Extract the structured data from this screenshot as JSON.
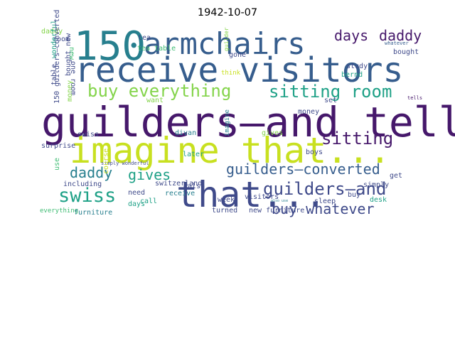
{
  "figure": {
    "title": "1942-10-07"
  },
  "palette": {
    "dark_purple": "#46186b",
    "indigo": "#3f4a8a",
    "blue": "#365d8d",
    "teal": "#277f8e",
    "sea_green": "#1fa187",
    "green": "#3fbc73",
    "light_green": "#84d44b",
    "lime": "#c8e020"
  },
  "words": [
    {
      "text": "150",
      "color": "teal"
    },
    {
      "text": "armchairs",
      "color": "blue"
    },
    {
      "text": "receive visitors",
      "color": "blue"
    },
    {
      "text": "guilders—and tells",
      "color": "dark_purple"
    },
    {
      "text": "imagine that...",
      "color": "lime"
    },
    {
      "text": "that...",
      "color": "indigo"
    },
    {
      "text": "buy everything",
      "color": "light_green"
    },
    {
      "text": "sitting room",
      "color": "sea_green"
    },
    {
      "text": "days",
      "color": "dark_purple"
    },
    {
      "text": "daddy",
      "color": "dark_purple"
    },
    {
      "text": "sitting",
      "color": "dark_purple"
    },
    {
      "text": "guilders—converted",
      "color": "blue"
    },
    {
      "text": "guilders—and",
      "color": "indigo"
    },
    {
      "text": "daddy",
      "color": "teal"
    },
    {
      "text": "gives",
      "color": "sea_green"
    },
    {
      "text": "swiss",
      "color": "sea_green"
    },
    {
      "text": "buy whatever",
      "color": "indigo"
    },
    {
      "text": "daddy",
      "color": "light_green"
    },
    {
      "text": "room",
      "color": "indigo"
    },
    {
      "text": "tea",
      "color": "indigo"
    },
    {
      "text": "tea table",
      "color": "green"
    },
    {
      "text": "gone",
      "color": "indigo"
    },
    {
      "text": "study",
      "color": "indigo"
    },
    {
      "text": "bernd",
      "color": "sea_green"
    },
    {
      "text": "bought",
      "color": "indigo"
    },
    {
      "text": "whatever",
      "color": "blue"
    },
    {
      "text": "tells",
      "color": "dark_purple"
    },
    {
      "text": "think",
      "color": "lime"
    },
    {
      "text": "want",
      "color": "light_green"
    },
    {
      "text": "set",
      "color": "indigo"
    },
    {
      "text": "money",
      "color": "indigo"
    },
    {
      "text": "swiss",
      "color": "indigo"
    },
    {
      "text": "divan",
      "color": "teal"
    },
    {
      "text": "gives",
      "color": "light_green"
    },
    {
      "text": "surprise",
      "color": "indigo"
    },
    {
      "text": "later",
      "color": "sea_green"
    },
    {
      "text": "boys",
      "color": "indigo"
    },
    {
      "text": "simply wonderful",
      "color": "indigo"
    },
    {
      "text": "including",
      "color": "indigo"
    },
    {
      "text": "get",
      "color": "indigo"
    },
    {
      "text": "simply",
      "color": "indigo"
    },
    {
      "text": "buy",
      "color": "indigo"
    },
    {
      "text": "sleep",
      "color": "indigo"
    },
    {
      "text": "switzerland",
      "color": "indigo"
    },
    {
      "text": "receive",
      "color": "teal"
    },
    {
      "text": "also",
      "color": "indigo"
    },
    {
      "text": "week",
      "color": "indigo"
    },
    {
      "text": "visitors",
      "color": "indigo"
    },
    {
      "text": "call",
      "color": "sea_green"
    },
    {
      "text": "need",
      "color": "indigo"
    },
    {
      "text": "days",
      "color": "sea_green"
    },
    {
      "text": "everything",
      "color": "green"
    },
    {
      "text": "furniture",
      "color": "teal"
    },
    {
      "text": "turned",
      "color": "indigo"
    },
    {
      "text": "new furniture",
      "color": "indigo"
    },
    {
      "text": "desk",
      "color": "sea_green"
    },
    {
      "text": "also use",
      "color": "teal"
    },
    {
      "text": "new",
      "color": "green"
    },
    {
      "text": "wonderful",
      "color": "sea_green"
    },
    {
      "text": "table",
      "color": "indigo"
    },
    {
      "text": "one room",
      "color": "indigo"
    },
    {
      "text": "bought new",
      "color": "indigo"
    },
    {
      "text": "money",
      "color": "light_green"
    },
    {
      "text": "150 guilders—converted",
      "color": "indigo"
    },
    {
      "text": "guilder",
      "color": "light_green"
    },
    {
      "text": "imagine",
      "color": "teal"
    },
    {
      "text": "use",
      "color": "green"
    },
    {
      "text": "course",
      "color": "lime"
    }
  ]
}
